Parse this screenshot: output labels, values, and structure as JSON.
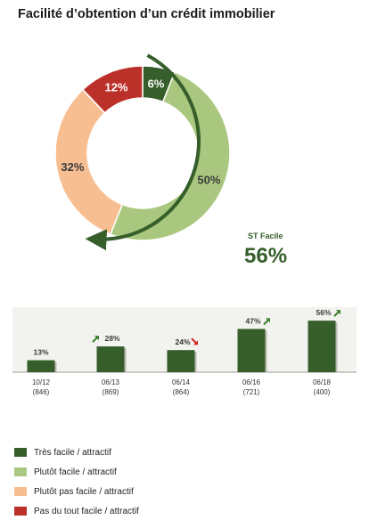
{
  "title": "Facilité d’obtention d’un crédit immobilier",
  "chart_data": [
    {
      "type": "pie",
      "variant": "donut",
      "slices": [
        {
          "label": "Très facile / attractif",
          "value": 6,
          "display": "6%",
          "color": "#355E2A"
        },
        {
          "label": "Plutôt facile / attractif",
          "value": 50,
          "display": "50%",
          "color": "#A9C77E"
        },
        {
          "label": "Plutôt pas facile / attractif",
          "value": 32,
          "display": "32%",
          "color": "#F7BE92"
        },
        {
          "label": "Pas du tout facile / attractif",
          "value": 12,
          "display": "12%",
          "color": "#BB3029"
        }
      ],
      "summary": {
        "label": "ST Facile",
        "value": 56,
        "display": "56%"
      }
    },
    {
      "type": "bar",
      "categories": [
        "10/12\n(846)",
        "06/13\n(869)",
        "06/14\n(864)",
        "06/16\n(721)",
        "06/18\n(400)"
      ],
      "values": [
        13,
        28,
        24,
        47,
        56
      ],
      "value_labels": [
        "13%",
        "28%",
        "24%",
        "47%",
        "56%"
      ],
      "trend": [
        "none",
        "up",
        "down",
        "up",
        "up"
      ],
      "ylim": [
        0,
        60
      ],
      "bar_color": "#355E2A"
    }
  ],
  "legend": [
    {
      "label": "Très facile / attractif",
      "color": "#355E2A"
    },
    {
      "label": "Plutôt facile / attractif",
      "color": "#A9C77E"
    },
    {
      "label": "Plutôt pas facile / attractif",
      "color": "#F7BE92"
    },
    {
      "label": "Pas du tout facile / attractif",
      "color": "#BB3029"
    }
  ],
  "colors": {
    "trend_up": "#3A7D2A",
    "trend_down": "#D42020",
    "summary_text": "#355E2A",
    "panel_bg": "#F2F2EE"
  }
}
